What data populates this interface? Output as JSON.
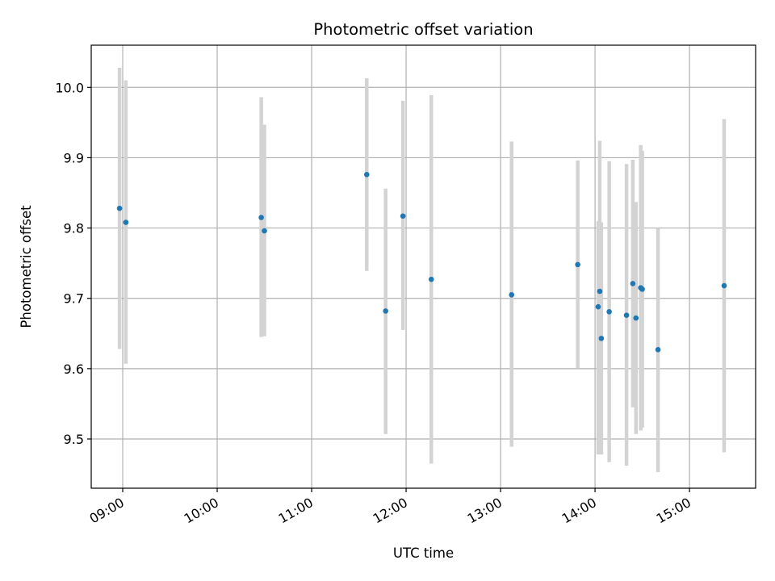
{
  "chart_data": {
    "type": "scatter",
    "title": "Photometric offset variation",
    "xlabel": "UTC time",
    "ylabel": "Photometric offset",
    "grid": true,
    "x_tick_labels": [
      "09:00",
      "10:00",
      "11:00",
      "12:00",
      "13:00",
      "14:00",
      "15:00"
    ],
    "y_tick_labels": [
      "9.5",
      "9.6",
      "9.7",
      "9.8",
      "9.9",
      "10.0"
    ],
    "xlim": [
      "08:40",
      "15:42"
    ],
    "ylim": [
      9.43,
      10.06
    ],
    "x_ticks": [
      "09:00",
      "10:00",
      "11:00",
      "12:00",
      "13:00",
      "14:00",
      "15:00"
    ],
    "y_ticks": [
      9.5,
      9.6,
      9.7,
      9.8,
      9.9,
      10.0
    ],
    "point_color": "#1f77b4",
    "errorbar_color": "#d3d3d3",
    "series": [
      {
        "points": [
          {
            "x": "08:58",
            "y": 9.828,
            "low": 9.628,
            "high": 10.028
          },
          {
            "x": "09:02",
            "y": 9.808,
            "low": 9.607,
            "high": 10.01
          },
          {
            "x": "10:28",
            "y": 9.815,
            "low": 9.645,
            "high": 9.986
          },
          {
            "x": "10:30",
            "y": 9.796,
            "low": 9.646,
            "high": 9.947
          },
          {
            "x": "11:35",
            "y": 9.876,
            "low": 9.739,
            "high": 10.013
          },
          {
            "x": "11:47",
            "y": 9.682,
            "low": 9.507,
            "high": 9.856
          },
          {
            "x": "11:58",
            "y": 9.817,
            "low": 9.655,
            "high": 9.981
          },
          {
            "x": "12:16",
            "y": 9.727,
            "low": 9.465,
            "high": 9.989
          },
          {
            "x": "13:07",
            "y": 9.705,
            "low": 9.489,
            "high": 9.923
          },
          {
            "x": "13:49",
            "y": 9.748,
            "low": 9.601,
            "high": 9.896
          },
          {
            "x": "14:02",
            "y": 9.688,
            "low": 9.478,
            "high": 9.81
          },
          {
            "x": "14:03",
            "y": 9.71,
            "low": 9.478,
            "high": 9.924
          },
          {
            "x": "14:04",
            "y": 9.643,
            "low": 9.478,
            "high": 9.808
          },
          {
            "x": "14:09",
            "y": 9.681,
            "low": 9.467,
            "high": 9.895
          },
          {
            "x": "14:20",
            "y": 9.676,
            "low": 9.462,
            "high": 9.891
          },
          {
            "x": "14:24",
            "y": 9.721,
            "low": 9.545,
            "high": 9.897
          },
          {
            "x": "14:26",
            "y": 9.672,
            "low": 9.507,
            "high": 9.837
          },
          {
            "x": "14:29",
            "y": 9.715,
            "low": 9.512,
            "high": 9.918
          },
          {
            "x": "14:30",
            "y": 9.713,
            "low": 9.516,
            "high": 9.91
          },
          {
            "x": "14:40",
            "y": 9.627,
            "low": 9.453,
            "high": 9.8
          },
          {
            "x": "15:22",
            "y": 9.718,
            "low": 9.481,
            "high": 9.955
          }
        ]
      }
    ]
  }
}
